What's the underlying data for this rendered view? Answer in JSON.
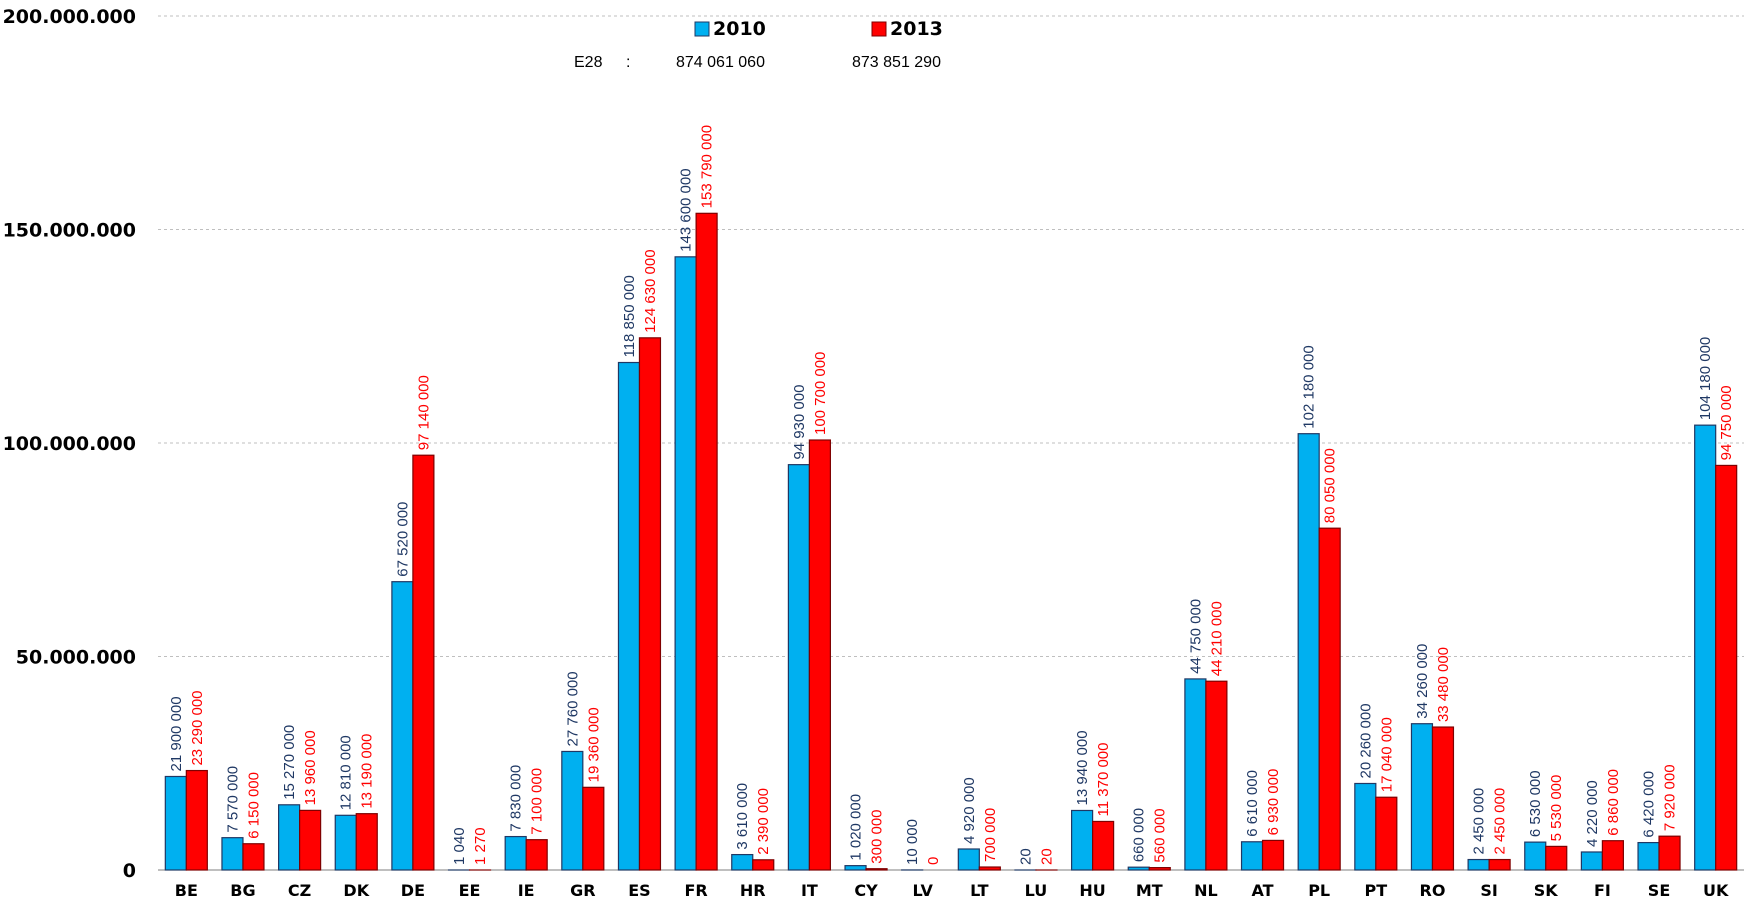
{
  "chart_data": {
    "type": "bar",
    "title": "",
    "xlabel": "",
    "ylabel": "",
    "ylim": [
      0,
      200000000
    ],
    "yticks": [
      0,
      50000000,
      100000000,
      150000000,
      200000000
    ],
    "ytick_labels": [
      "0",
      "50.000.000",
      "100.000.000",
      "150.000.000",
      "200.000.000"
    ],
    "grid": true,
    "legend_position": "top-center",
    "categories": [
      "BE",
      "BG",
      "CZ",
      "DK",
      "DE",
      "EE",
      "IE",
      "GR",
      "ES",
      "FR",
      "HR",
      "IT",
      "CY",
      "LV",
      "LT",
      "LU",
      "HU",
      "MT",
      "NL",
      "AT",
      "PL",
      "PT",
      "RO",
      "SI",
      "SK",
      "FI",
      "SE",
      "UK"
    ],
    "series": [
      {
        "name": "2010",
        "color": "#00B0F0",
        "label_color": "#1F3864",
        "values": [
          21900000,
          7570000,
          15270000,
          12810000,
          67520000,
          1040,
          7830000,
          27760000,
          118850000,
          143600000,
          3610000,
          94930000,
          1020000,
          10000,
          4920000,
          20,
          13940000,
          660000,
          44750000,
          6610000,
          102180000,
          20260000,
          34260000,
          2450000,
          6530000,
          4220000,
          6420000,
          104180000
        ],
        "labels": [
          "21 900 000",
          "7 570 000",
          "15 270 000",
          "12 810 000",
          "67 520 000",
          "1 040",
          "7 830 000",
          "27 760 000",
          "118 850 000",
          "143 600 000",
          "3 610 000",
          "94 930 000",
          "1 020 000",
          "10 000",
          "4 920 000",
          "20",
          "13 940 000",
          "660 000",
          "44 750 000",
          "6 610 000",
          "102 180 000",
          "20 260 000",
          "34 260 000",
          "2 450 000",
          "6 530 000",
          "4 220 000",
          "6 420 000",
          "104 180 000"
        ]
      },
      {
        "name": "2013",
        "color": "#FF0000",
        "label_color": "#FF0000",
        "values": [
          23290000,
          6150000,
          13960000,
          13190000,
          97140000,
          1270,
          7100000,
          19360000,
          124630000,
          153790000,
          2390000,
          100700000,
          300000,
          0,
          700000,
          20,
          11370000,
          560000,
          44210000,
          6930000,
          80050000,
          17040000,
          33480000,
          2450000,
          5530000,
          6860000,
          7920000,
          94750000
        ],
        "labels": [
          "23 290 000",
          "6 150 000",
          "13 960 000",
          "13 190 000",
          "97 140 000",
          "1 270",
          "7 100 000",
          "19 360 000",
          "124 630 000",
          "153 790 000",
          "2 390 000",
          "100 700 000",
          "300 000",
          "0",
          "700 000",
          "20",
          "11 370 000",
          "560 000",
          "44 210 000",
          "6 930 000",
          "80 050 000",
          "17 040 000",
          "33 480 000",
          "2 450 000",
          "5 530 000",
          "6 860 000",
          "7 920 000",
          "94 750 000"
        ]
      }
    ],
    "totals": {
      "label": "E28",
      "separator": ":",
      "values": [
        "874 061 060",
        "873 851 290"
      ]
    }
  }
}
